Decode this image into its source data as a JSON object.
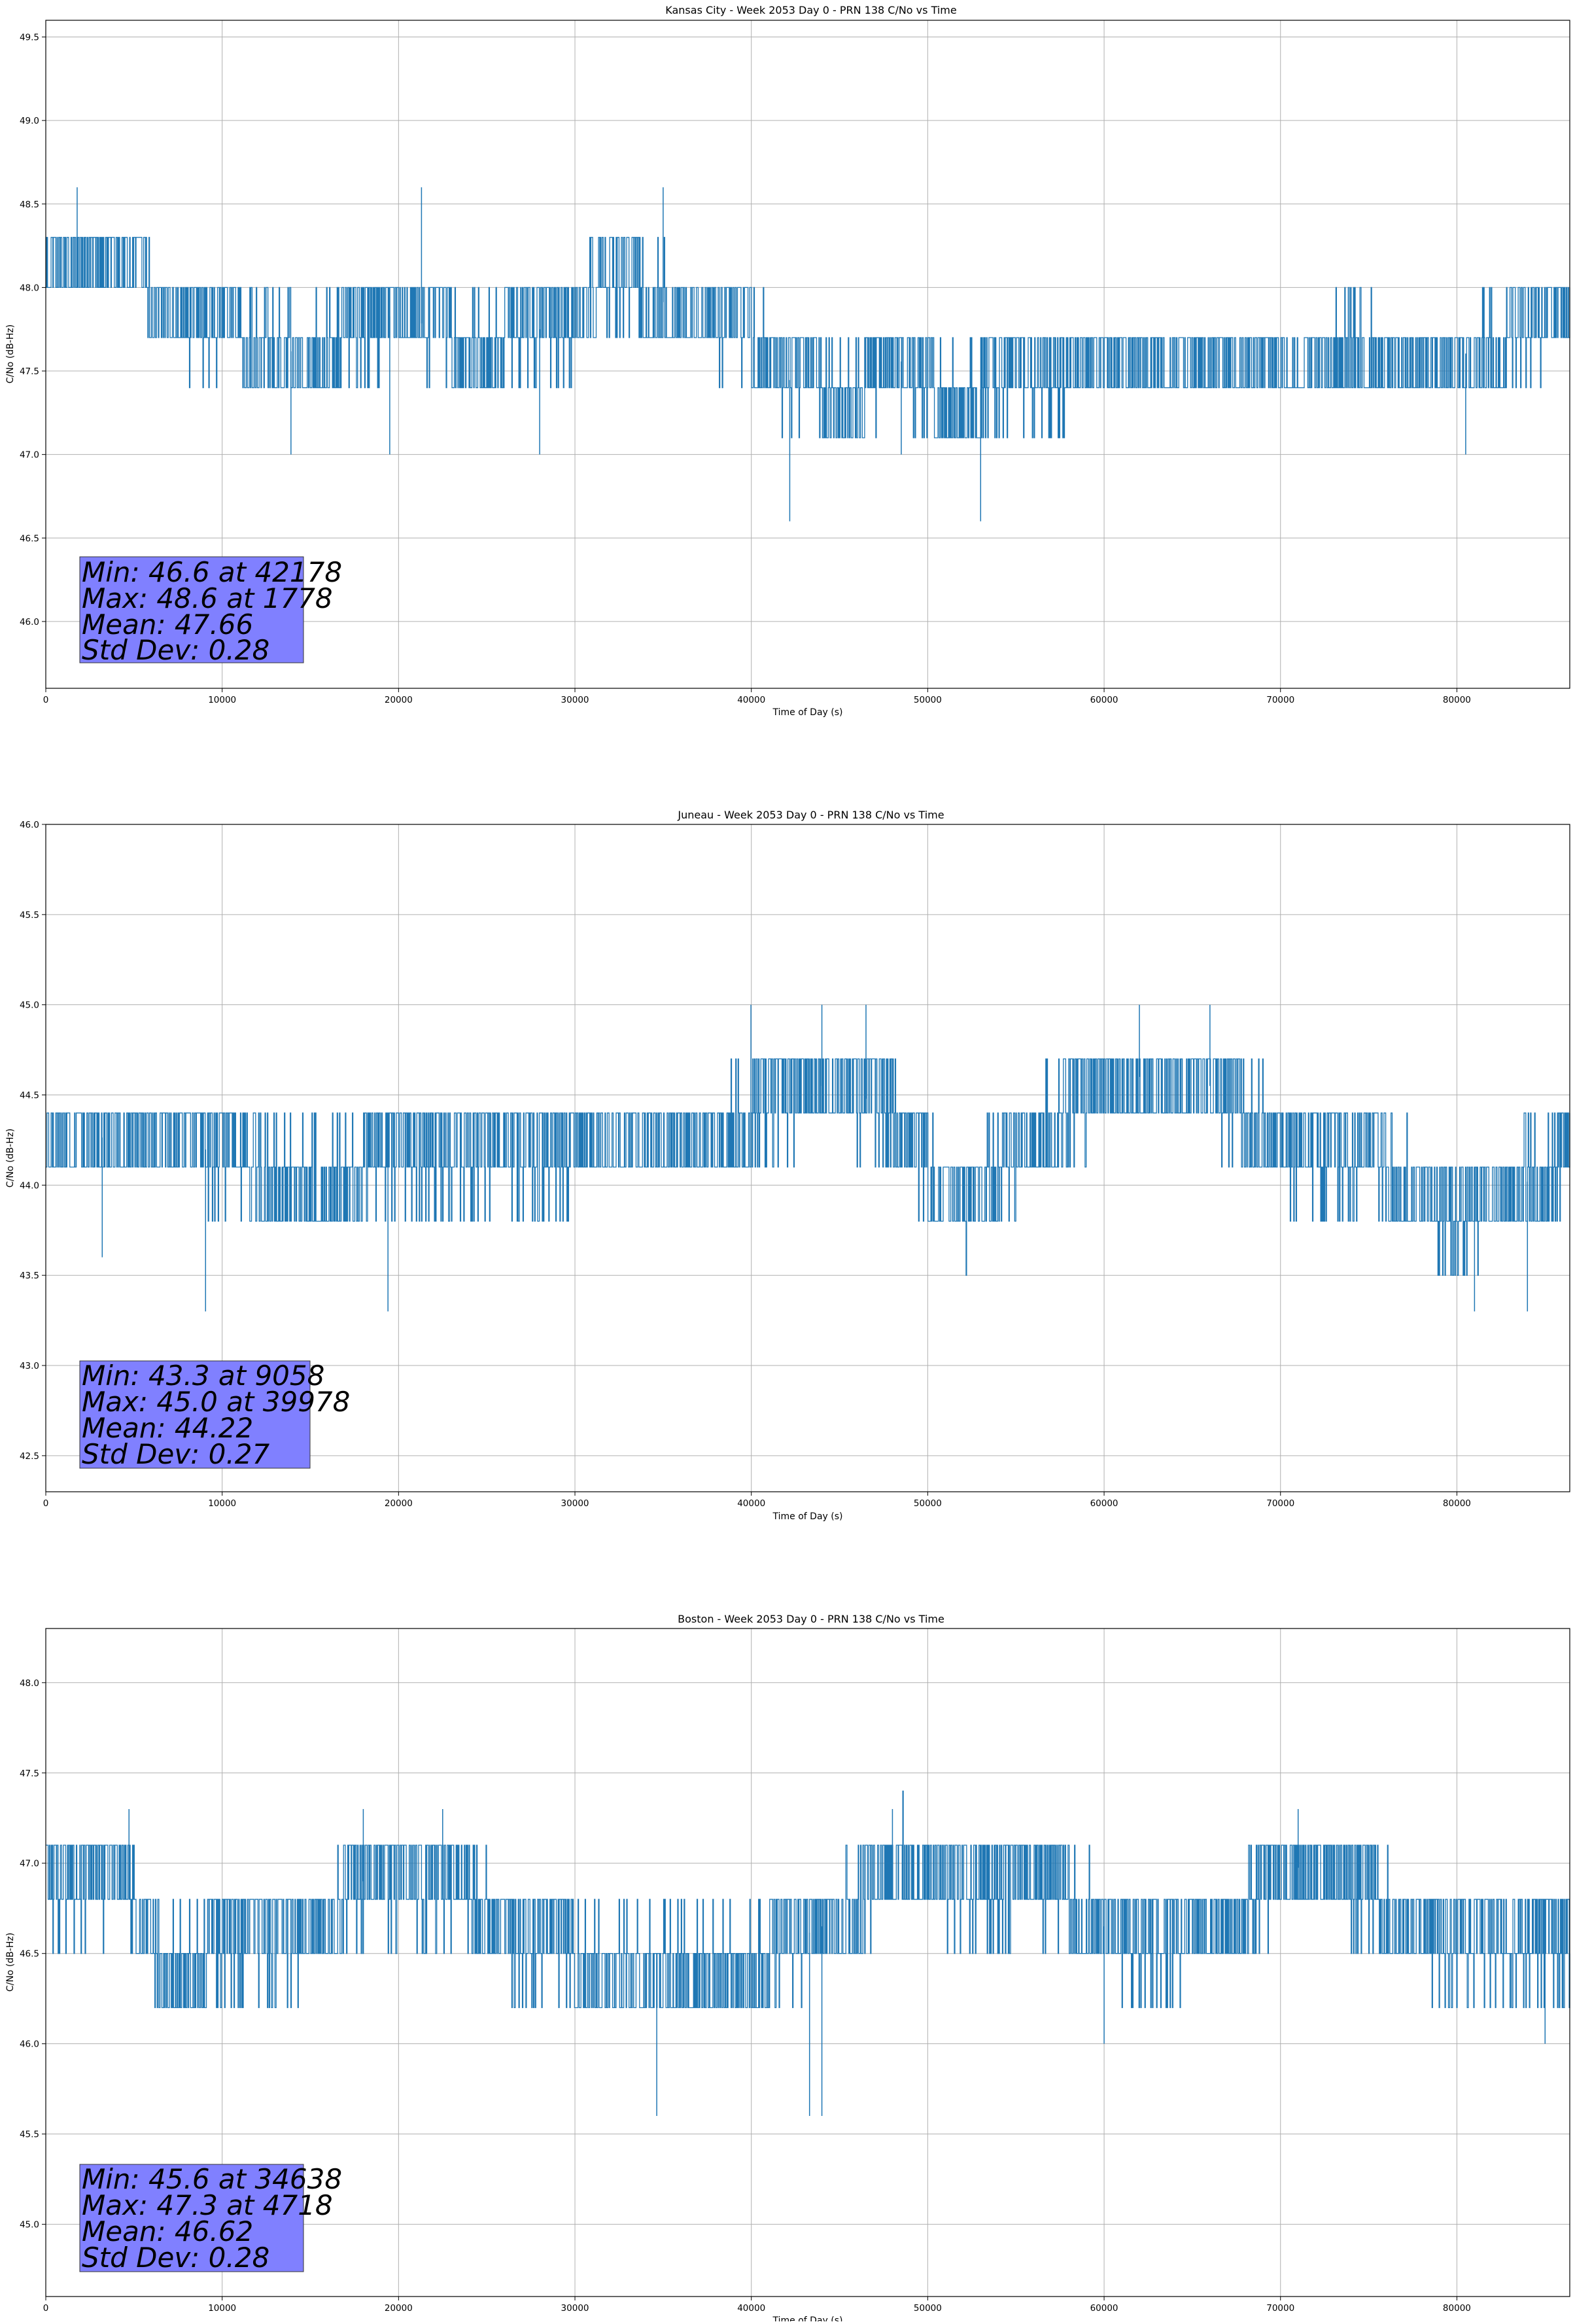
{
  "figure": {
    "colors": {
      "series": "#1f77b4",
      "stats_box": "#8080ff",
      "grid": "#b0b0b0",
      "axes": "#000000"
    }
  },
  "chart_data": [
    {
      "type": "line",
      "title": "Kansas City - Week 2053 Day 0 - PRN 138 C/No vs Time",
      "xlabel": "Time of Day (s)",
      "ylabel": "C/No (dB-Hz)",
      "xlim": [
        0,
        86400
      ],
      "ylim": [
        45.6,
        49.6
      ],
      "xticks": [
        0,
        10000,
        20000,
        30000,
        40000,
        50000,
        60000,
        70000,
        80000
      ],
      "xtick_labels": [
        "0",
        "10000",
        "20000",
        "30000",
        "40000",
        "50000",
        "60000",
        "70000",
        "80000"
      ],
      "yticks": [
        46.0,
        46.5,
        47.0,
        47.5,
        48.0,
        48.5,
        49.0,
        49.5
      ],
      "ytick_labels": [
        "46.0",
        "46.5",
        "47.0",
        "47.5",
        "48.0",
        "48.5",
        "49.0",
        "49.5"
      ],
      "grid": true,
      "profile": {
        "x": [
          0,
          5500,
          6000,
          14500,
          20000,
          24000,
          30000,
          32000,
          36000,
          40000,
          42000,
          46000,
          48000,
          51500,
          54000,
          58000,
          62000,
          66000,
          70000,
          74000,
          78000,
          84000,
          86400
        ],
        "base": [
          48.15,
          48.15,
          47.85,
          47.6,
          47.85,
          47.65,
          47.8,
          48.1,
          47.85,
          47.7,
          47.45,
          47.35,
          47.6,
          47.3,
          47.45,
          47.5,
          47.6,
          47.55,
          47.5,
          47.65,
          47.5,
          47.75,
          47.9
        ]
      },
      "extremes": [
        [
          1778,
          48.6
        ],
        [
          21300,
          48.6
        ],
        [
          35000,
          48.6
        ],
        [
          42178,
          46.6
        ],
        [
          53000,
          46.6
        ],
        [
          19500,
          47.0
        ],
        [
          28000,
          47.0
        ],
        [
          48500,
          47.0
        ],
        [
          80500,
          47.0
        ],
        [
          13900,
          47.0
        ]
      ],
      "stats": {
        "min": "Min: 46.6 at 42178",
        "max": "Max: 48.6 at 1778",
        "mean": "Mean: 47.66",
        "std": "Std Dev: 0.28"
      }
    },
    {
      "type": "line",
      "title": "Juneau - Week 2053 Day 0 - PRN 138 C/No vs Time",
      "xlabel": "Time of Day (s)",
      "ylabel": "C/No (dB-Hz)",
      "xlim": [
        0,
        86400
      ],
      "ylim": [
        42.3,
        46.0
      ],
      "xticks": [
        0,
        10000,
        20000,
        30000,
        40000,
        50000,
        60000,
        70000,
        80000
      ],
      "xtick_labels": [
        "0",
        "10000",
        "20000",
        "30000",
        "40000",
        "50000",
        "60000",
        "70000",
        "80000"
      ],
      "yticks": [
        42.5,
        43.0,
        43.5,
        44.0,
        44.5,
        45.0,
        45.5,
        46.0
      ],
      "ytick_labels": [
        "42.5",
        "43.0",
        "43.5",
        "44.0",
        "44.5",
        "45.0",
        "45.5",
        "46.0"
      ],
      "grid": true,
      "profile": {
        "x": [
          0,
          9000,
          14000,
          20000,
          30000,
          36000,
          40000,
          44000,
          47500,
          50000,
          52000,
          55000,
          59000,
          62000,
          66000,
          69000,
          72000,
          76000,
          80000,
          86400
        ],
        "base": [
          44.3,
          44.2,
          44.0,
          44.15,
          44.2,
          44.2,
          44.4,
          44.55,
          44.45,
          44.1,
          43.85,
          44.2,
          44.5,
          44.6,
          44.55,
          44.3,
          44.1,
          44.1,
          43.8,
          44.15
        ]
      },
      "extremes": [
        [
          39978,
          45.0
        ],
        [
          44000,
          45.0
        ],
        [
          46500,
          45.0
        ],
        [
          62000,
          45.0
        ],
        [
          66000,
          45.0
        ],
        [
          9058,
          43.3
        ],
        [
          19400,
          43.3
        ],
        [
          81000,
          43.3
        ],
        [
          84000,
          43.3
        ],
        [
          3200,
          43.6
        ]
      ],
      "stats": {
        "min": "Min: 43.3 at 9058",
        "max": "Max: 45.0 at 39978",
        "mean": "Mean: 44.22",
        "std": "Std Dev: 0.27"
      }
    },
    {
      "type": "line",
      "title": "Boston - Week 2053 Day 0 - PRN 138 C/No vs Time",
      "xlabel": "Time of Day (s)",
      "ylabel": "C/No (dB-Hz)",
      "xlim": [
        0,
        86400
      ],
      "ylim": [
        44.6,
        48.3
      ],
      "xticks": [
        0,
        10000,
        20000,
        30000,
        40000,
        50000,
        60000,
        70000,
        80000
      ],
      "xtick_labels": [
        "0",
        "10000",
        "20000",
        "30000",
        "40000",
        "50000",
        "60000",
        "70000",
        "80000"
      ],
      "yticks": [
        45.0,
        45.5,
        46.0,
        46.5,
        47.0,
        47.5,
        48.0
      ],
      "ytick_labels": [
        "45.0",
        "45.5",
        "46.0",
        "46.5",
        "47.0",
        "47.5",
        "48.0"
      ],
      "grid": true,
      "profile": {
        "x": [
          0,
          5000,
          6500,
          14500,
          18000,
          24000,
          27000,
          33000,
          40000,
          46000,
          48000,
          52000,
          58000,
          62000,
          68000,
          70000,
          74000,
          80000,
          86400
        ],
        "base": [
          46.85,
          46.8,
          46.45,
          46.6,
          46.9,
          46.8,
          46.55,
          46.45,
          46.45,
          46.75,
          47.05,
          46.85,
          46.8,
          46.5,
          46.7,
          47.0,
          46.9,
          46.5,
          46.6
        ]
      },
      "extremes": [
        [
          4718,
          47.3
        ],
        [
          18000,
          47.3
        ],
        [
          22500,
          47.3
        ],
        [
          48000,
          47.3
        ],
        [
          71000,
          47.3
        ],
        [
          34638,
          45.6
        ],
        [
          43300,
          45.6
        ],
        [
          44000,
          45.6
        ],
        [
          60000,
          46.0
        ],
        [
          85000,
          46.0
        ]
      ],
      "stats": {
        "min": "Min: 45.6 at 34638",
        "max": "Max: 47.3 at 4718",
        "mean": "Mean: 46.62",
        "std": "Std Dev: 0.28"
      }
    }
  ]
}
